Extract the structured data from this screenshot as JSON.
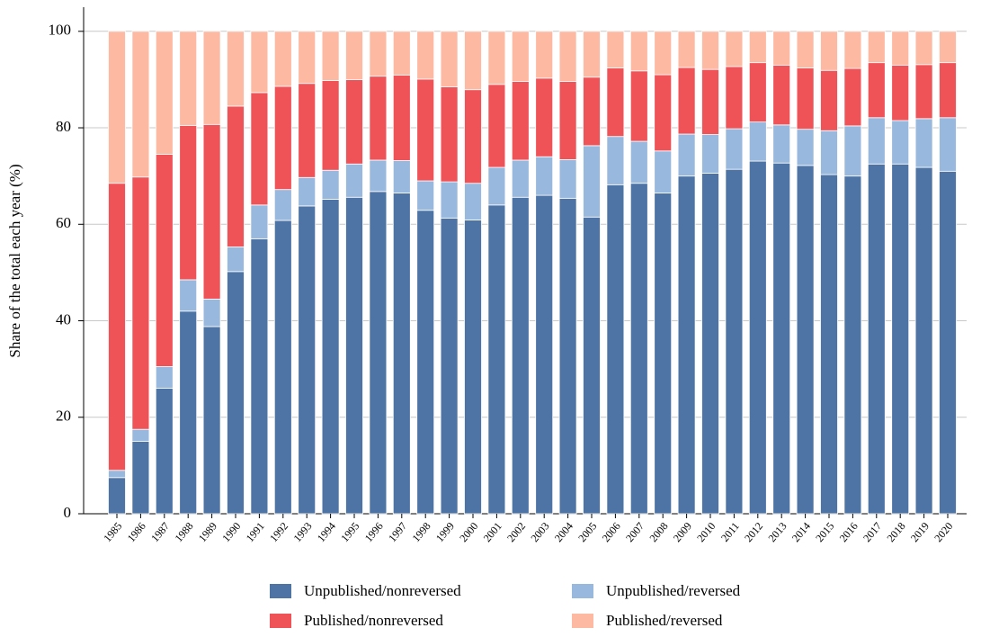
{
  "chart_data": {
    "type": "stacked_bar",
    "y_label": "Share of the total each year (%)",
    "categories": [
      "1985",
      "1986",
      "1987",
      "1988",
      "1989",
      "1990",
      "1991",
      "1992",
      "1993",
      "1994",
      "1995",
      "1996",
      "1997",
      "1998",
      "1999",
      "2000",
      "2001",
      "2002",
      "2003",
      "2004",
      "2005",
      "2006",
      "2007",
      "2008",
      "2009",
      "2010",
      "2011",
      "2012",
      "2013",
      "2014",
      "2015",
      "2016",
      "2017",
      "2018",
      "2019",
      "2020"
    ],
    "series": [
      {
        "name": "Unpublished/nonreversed",
        "color": "#4e74a6",
        "values": [
          7.5,
          15,
          26,
          42,
          38.8,
          50.2,
          57,
          60.8,
          63.8,
          65.2,
          65.6,
          66.8,
          66.5,
          62.9,
          61.3,
          60.9,
          64,
          65.6,
          66,
          65.4,
          61.5,
          68.2,
          68.5,
          66.5,
          70,
          70.6,
          71.4,
          73.1,
          72.7,
          72.2,
          70.3,
          70,
          72.5,
          72.5,
          71.8,
          71
        ]
      },
      {
        "name": "Unpublished/reversed",
        "color": "#99b8dd",
        "values": [
          1.5,
          2.5,
          4.5,
          6.5,
          5.7,
          5.1,
          7,
          6.4,
          5.9,
          6,
          6.9,
          6.5,
          6.7,
          6.1,
          7.5,
          7.6,
          7.8,
          7.7,
          8,
          8,
          14.8,
          10,
          8.7,
          8.7,
          8.7,
          8,
          8.4,
          8.1,
          7.9,
          7.5,
          9.1,
          10.4,
          9.6,
          9,
          10.1,
          11.1
        ]
      },
      {
        "name": "Published/nonreversed",
        "color": "#ef5257",
        "values": [
          59.5,
          52.3,
          44,
          32,
          36.2,
          29.2,
          23.3,
          21.4,
          19.5,
          18.6,
          17.5,
          17.4,
          17.7,
          21.1,
          19.7,
          19.4,
          17.2,
          16.3,
          16.3,
          16.2,
          14.2,
          14.2,
          14.6,
          15.8,
          13.8,
          13.5,
          12.9,
          12.3,
          12.4,
          12.7,
          12.5,
          11.9,
          11.4,
          11.5,
          11.2,
          11.4
        ]
      },
      {
        "name": "Published/reversed",
        "color": "#fdb9a2",
        "values": [
          31.5,
          30.2,
          25.5,
          19.5,
          19.3,
          15.5,
          12.7,
          11.4,
          10.8,
          10.2,
          10,
          9.3,
          9.1,
          9.9,
          11.5,
          12.1,
          11,
          10.4,
          9.7,
          10.4,
          9.5,
          7.6,
          8.2,
          9,
          7.5,
          7.9,
          7.3,
          6.5,
          7,
          7.6,
          8.1,
          7.7,
          6.5,
          7,
          6.9,
          6.5
        ]
      }
    ],
    "ylim": [
      0,
      105
    ],
    "yticks": [
      0,
      20,
      40,
      60,
      80,
      100
    ],
    "grid": true,
    "legend": "bottom"
  }
}
